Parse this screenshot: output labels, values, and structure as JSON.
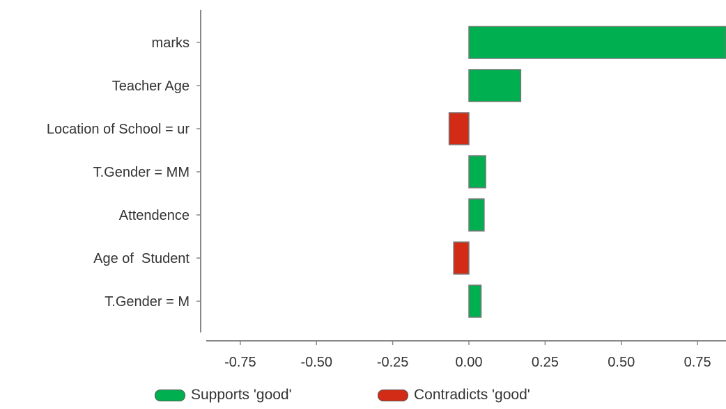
{
  "chart_data": {
    "type": "bar",
    "orientation": "horizontal",
    "categories": [
      "marks",
      "Teacher Age",
      "Location of School = ur",
      "T.Gender = MM",
      "Attendence",
      "Age of  Student",
      "T.Gender = M"
    ],
    "values": [
      0.85,
      0.17,
      -0.065,
      0.055,
      0.05,
      -0.05,
      0.04
    ],
    "xlim": [
      -0.85,
      0.85
    ],
    "xticks": [
      -0.75,
      -0.5,
      -0.25,
      0.0,
      0.25,
      0.5,
      0.75
    ],
    "xtick_labels": [
      "-0.75",
      "-0.50",
      "-0.25",
      "0.00",
      "0.25",
      "0.50",
      "0.75"
    ],
    "grid": false,
    "legend_position": "bottom",
    "legend": [
      {
        "label": "Supports 'good'",
        "color": "#00b050"
      },
      {
        "label": "Contradicts 'good'",
        "color": "#d22b16"
      }
    ],
    "colors": {
      "positive": "#00b050",
      "negative": "#d22b16",
      "bar_border": "#777777",
      "axis": "#888888"
    }
  }
}
